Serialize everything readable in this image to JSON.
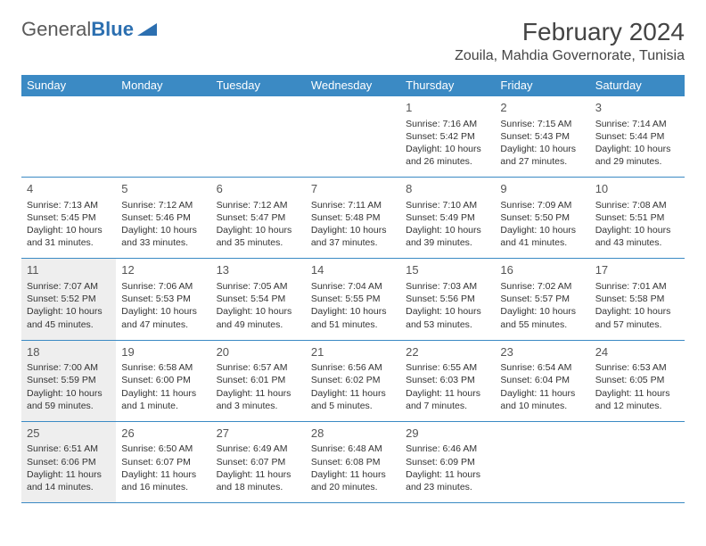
{
  "logo": {
    "text1": "General",
    "text2": "Blue"
  },
  "title": "February 2024",
  "location": "Zouila, Mahdia Governorate, Tunisia",
  "dayHeaders": [
    "Sunday",
    "Monday",
    "Tuesday",
    "Wednesday",
    "Thursday",
    "Friday",
    "Saturday"
  ],
  "colors": {
    "headerBg": "#3b8ac4",
    "headerText": "#ffffff",
    "border": "#3b8ac4",
    "shaded": "#eeeeee",
    "text": "#333333",
    "logoGray": "#5a5a5a",
    "logoBlue": "#2c6fb0"
  },
  "weeks": [
    [
      null,
      null,
      null,
      null,
      {
        "n": "1",
        "sr": "Sunrise: 7:16 AM",
        "ss": "Sunset: 5:42 PM",
        "dl": "Daylight: 10 hours and 26 minutes."
      },
      {
        "n": "2",
        "sr": "Sunrise: 7:15 AM",
        "ss": "Sunset: 5:43 PM",
        "dl": "Daylight: 10 hours and 27 minutes."
      },
      {
        "n": "3",
        "sr": "Sunrise: 7:14 AM",
        "ss": "Sunset: 5:44 PM",
        "dl": "Daylight: 10 hours and 29 minutes."
      }
    ],
    [
      {
        "n": "4",
        "sr": "Sunrise: 7:13 AM",
        "ss": "Sunset: 5:45 PM",
        "dl": "Daylight: 10 hours and 31 minutes."
      },
      {
        "n": "5",
        "sr": "Sunrise: 7:12 AM",
        "ss": "Sunset: 5:46 PM",
        "dl": "Daylight: 10 hours and 33 minutes."
      },
      {
        "n": "6",
        "sr": "Sunrise: 7:12 AM",
        "ss": "Sunset: 5:47 PM",
        "dl": "Daylight: 10 hours and 35 minutes."
      },
      {
        "n": "7",
        "sr": "Sunrise: 7:11 AM",
        "ss": "Sunset: 5:48 PM",
        "dl": "Daylight: 10 hours and 37 minutes."
      },
      {
        "n": "8",
        "sr": "Sunrise: 7:10 AM",
        "ss": "Sunset: 5:49 PM",
        "dl": "Daylight: 10 hours and 39 minutes."
      },
      {
        "n": "9",
        "sr": "Sunrise: 7:09 AM",
        "ss": "Sunset: 5:50 PM",
        "dl": "Daylight: 10 hours and 41 minutes."
      },
      {
        "n": "10",
        "sr": "Sunrise: 7:08 AM",
        "ss": "Sunset: 5:51 PM",
        "dl": "Daylight: 10 hours and 43 minutes."
      }
    ],
    [
      {
        "n": "11",
        "sr": "Sunrise: 7:07 AM",
        "ss": "Sunset: 5:52 PM",
        "dl": "Daylight: 10 hours and 45 minutes.",
        "shaded": true
      },
      {
        "n": "12",
        "sr": "Sunrise: 7:06 AM",
        "ss": "Sunset: 5:53 PM",
        "dl": "Daylight: 10 hours and 47 minutes."
      },
      {
        "n": "13",
        "sr": "Sunrise: 7:05 AM",
        "ss": "Sunset: 5:54 PM",
        "dl": "Daylight: 10 hours and 49 minutes."
      },
      {
        "n": "14",
        "sr": "Sunrise: 7:04 AM",
        "ss": "Sunset: 5:55 PM",
        "dl": "Daylight: 10 hours and 51 minutes."
      },
      {
        "n": "15",
        "sr": "Sunrise: 7:03 AM",
        "ss": "Sunset: 5:56 PM",
        "dl": "Daylight: 10 hours and 53 minutes."
      },
      {
        "n": "16",
        "sr": "Sunrise: 7:02 AM",
        "ss": "Sunset: 5:57 PM",
        "dl": "Daylight: 10 hours and 55 minutes."
      },
      {
        "n": "17",
        "sr": "Sunrise: 7:01 AM",
        "ss": "Sunset: 5:58 PM",
        "dl": "Daylight: 10 hours and 57 minutes."
      }
    ],
    [
      {
        "n": "18",
        "sr": "Sunrise: 7:00 AM",
        "ss": "Sunset: 5:59 PM",
        "dl": "Daylight: 10 hours and 59 minutes.",
        "shaded": true
      },
      {
        "n": "19",
        "sr": "Sunrise: 6:58 AM",
        "ss": "Sunset: 6:00 PM",
        "dl": "Daylight: 11 hours and 1 minute."
      },
      {
        "n": "20",
        "sr": "Sunrise: 6:57 AM",
        "ss": "Sunset: 6:01 PM",
        "dl": "Daylight: 11 hours and 3 minutes."
      },
      {
        "n": "21",
        "sr": "Sunrise: 6:56 AM",
        "ss": "Sunset: 6:02 PM",
        "dl": "Daylight: 11 hours and 5 minutes."
      },
      {
        "n": "22",
        "sr": "Sunrise: 6:55 AM",
        "ss": "Sunset: 6:03 PM",
        "dl": "Daylight: 11 hours and 7 minutes."
      },
      {
        "n": "23",
        "sr": "Sunrise: 6:54 AM",
        "ss": "Sunset: 6:04 PM",
        "dl": "Daylight: 11 hours and 10 minutes."
      },
      {
        "n": "24",
        "sr": "Sunrise: 6:53 AM",
        "ss": "Sunset: 6:05 PM",
        "dl": "Daylight: 11 hours and 12 minutes."
      }
    ],
    [
      {
        "n": "25",
        "sr": "Sunrise: 6:51 AM",
        "ss": "Sunset: 6:06 PM",
        "dl": "Daylight: 11 hours and 14 minutes.",
        "shaded": true
      },
      {
        "n": "26",
        "sr": "Sunrise: 6:50 AM",
        "ss": "Sunset: 6:07 PM",
        "dl": "Daylight: 11 hours and 16 minutes."
      },
      {
        "n": "27",
        "sr": "Sunrise: 6:49 AM",
        "ss": "Sunset: 6:07 PM",
        "dl": "Daylight: 11 hours and 18 minutes."
      },
      {
        "n": "28",
        "sr": "Sunrise: 6:48 AM",
        "ss": "Sunset: 6:08 PM",
        "dl": "Daylight: 11 hours and 20 minutes."
      },
      {
        "n": "29",
        "sr": "Sunrise: 6:46 AM",
        "ss": "Sunset: 6:09 PM",
        "dl": "Daylight: 11 hours and 23 minutes."
      },
      null,
      null
    ]
  ]
}
